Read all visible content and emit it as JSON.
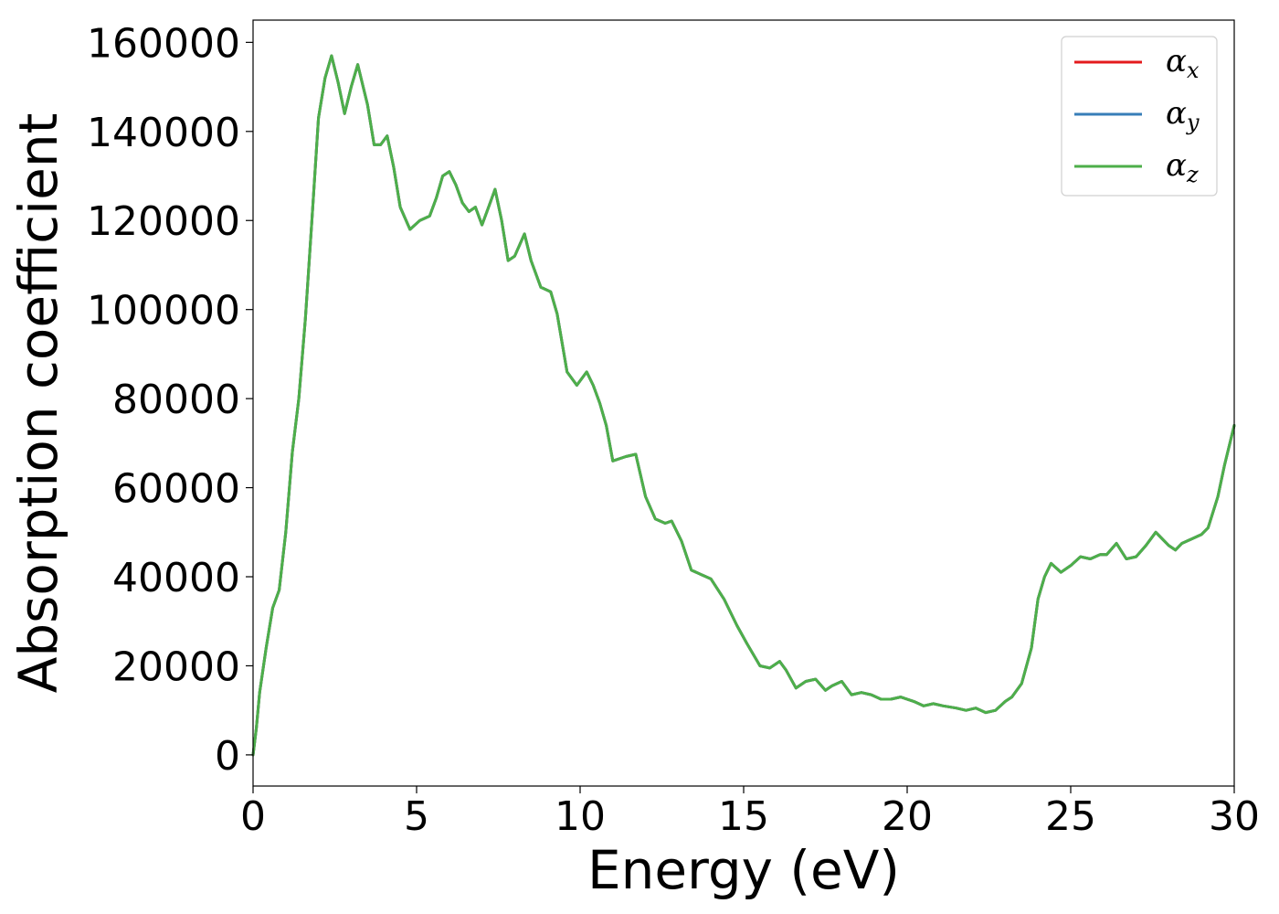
{
  "chart_data": {
    "type": "line",
    "title": "",
    "xlabel": "Energy (eV)",
    "ylabel": "Absorption coefficient",
    "xlim": [
      0,
      30
    ],
    "ylim": [
      -7000,
      165000
    ],
    "xticks": [
      "0",
      "5",
      "10",
      "15",
      "20",
      "25",
      "30"
    ],
    "yticks": [
      "0",
      "20000",
      "40000",
      "60000",
      "80000",
      "100000",
      "120000",
      "140000",
      "160000"
    ],
    "grid": false,
    "legend_position": "top-right",
    "legend": [
      {
        "symbol": "α",
        "sub": "x",
        "color": "#e41a1c"
      },
      {
        "symbol": "α",
        "sub": "y",
        "color": "#377eb8"
      },
      {
        "symbol": "α",
        "sub": "z",
        "color": "#4daf4a"
      }
    ],
    "x": [
      0,
      0.1,
      0.2,
      0.4,
      0.6,
      0.8,
      1.0,
      1.2,
      1.4,
      1.6,
      1.8,
      2.0,
      2.2,
      2.4,
      2.6,
      2.8,
      3.0,
      3.2,
      3.5,
      3.7,
      3.9,
      4.1,
      4.3,
      4.5,
      4.8,
      5.1,
      5.4,
      5.6,
      5.8,
      6.0,
      6.2,
      6.4,
      6.6,
      6.8,
      7.0,
      7.2,
      7.4,
      7.6,
      7.8,
      8.0,
      8.3,
      8.5,
      8.8,
      9.1,
      9.3,
      9.6,
      9.9,
      10.2,
      10.4,
      10.6,
      10.8,
      11.0,
      11.4,
      11.7,
      12.0,
      12.3,
      12.6,
      12.8,
      13.1,
      13.4,
      13.7,
      14.0,
      14.4,
      14.8,
      15.1,
      15.5,
      15.8,
      16.1,
      16.3,
      16.6,
      16.9,
      17.2,
      17.5,
      17.7,
      18.0,
      18.3,
      18.6,
      18.9,
      19.2,
      19.5,
      19.8,
      20.2,
      20.5,
      20.8,
      21.1,
      21.5,
      21.8,
      22.1,
      22.4,
      22.7,
      23.0,
      23.2,
      23.5,
      23.8,
      24.0,
      24.2,
      24.4,
      24.7,
      25.0,
      25.3,
      25.6,
      25.9,
      26.1,
      26.4,
      26.7,
      27.0,
      27.3,
      27.6,
      28.0,
      28.2,
      28.4,
      28.7,
      29.0,
      29.2,
      29.5,
      29.7,
      30.0
    ],
    "series": [
      {
        "color": "#e41a1c",
        "values": [
          0,
          6000,
          14000,
          24000,
          33000,
          37000,
          50000,
          68000,
          80000,
          98000,
          120000,
          143000,
          152000,
          157000,
          151000,
          144000,
          150000,
          155000,
          146000,
          137000,
          137000,
          139000,
          132000,
          123000,
          118000,
          120000,
          121000,
          125000,
          130000,
          131000,
          128000,
          124000,
          122000,
          123000,
          119000,
          123000,
          127000,
          120000,
          111000,
          112000,
          117000,
          111000,
          105000,
          104000,
          99000,
          86000,
          83000,
          86000,
          83000,
          79000,
          74000,
          66000,
          67000,
          67500,
          58000,
          53000,
          52000,
          52500,
          48000,
          41500,
          40500,
          39500,
          35000,
          29000,
          25000,
          20000,
          19500,
          21000,
          19000,
          15000,
          16500,
          17000,
          14500,
          15500,
          16500,
          13500,
          14000,
          13500,
          12500,
          12500,
          13000,
          12000,
          11000,
          11500,
          11000,
          10500,
          10000,
          10500,
          9500,
          10000,
          12000,
          13000,
          16000,
          24000,
          35000,
          40000,
          43000,
          41000,
          42500,
          44500,
          44000,
          45000,
          45000,
          47500,
          44000,
          44500,
          47000,
          50000,
          47000,
          46000,
          47500,
          48500,
          49500,
          51000,
          58000,
          65000,
          74000
        ]
      },
      {
        "color": "#377eb8",
        "values": [
          0,
          6000,
          14000,
          24000,
          33000,
          37000,
          50000,
          68000,
          80000,
          98000,
          120000,
          143000,
          152000,
          157000,
          151000,
          144000,
          150000,
          155000,
          146000,
          137000,
          137000,
          139000,
          132000,
          123000,
          118000,
          120000,
          121000,
          125000,
          130000,
          131000,
          128000,
          124000,
          122000,
          123000,
          119000,
          123000,
          127000,
          120000,
          111000,
          112000,
          117000,
          111000,
          105000,
          104000,
          99000,
          86000,
          83000,
          86000,
          83000,
          79000,
          74000,
          66000,
          67000,
          67500,
          58000,
          53000,
          52000,
          52500,
          48000,
          41500,
          40500,
          39500,
          35000,
          29000,
          25000,
          20000,
          19500,
          21000,
          19000,
          15000,
          16500,
          17000,
          14500,
          15500,
          16500,
          13500,
          14000,
          13500,
          12500,
          12500,
          13000,
          12000,
          11000,
          11500,
          11000,
          10500,
          10000,
          10500,
          9500,
          10000,
          12000,
          13000,
          16000,
          24000,
          35000,
          40000,
          43000,
          41000,
          42500,
          44500,
          44000,
          45000,
          45000,
          47500,
          44000,
          44500,
          47000,
          50000,
          47000,
          46000,
          47500,
          48500,
          49500,
          51000,
          58000,
          65000,
          74000
        ]
      },
      {
        "color": "#4daf4a",
        "values": [
          0,
          6000,
          14000,
          24000,
          33000,
          37000,
          50000,
          68000,
          80000,
          98000,
          120000,
          143000,
          152000,
          157000,
          151000,
          144000,
          150000,
          155000,
          146000,
          137000,
          137000,
          139000,
          132000,
          123000,
          118000,
          120000,
          121000,
          125000,
          130000,
          131000,
          128000,
          124000,
          122000,
          123000,
          119000,
          123000,
          127000,
          120000,
          111000,
          112000,
          117000,
          111000,
          105000,
          104000,
          99000,
          86000,
          83000,
          86000,
          83000,
          79000,
          74000,
          66000,
          67000,
          67500,
          58000,
          53000,
          52000,
          52500,
          48000,
          41500,
          40500,
          39500,
          35000,
          29000,
          25000,
          20000,
          19500,
          21000,
          19000,
          15000,
          16500,
          17000,
          14500,
          15500,
          16500,
          13500,
          14000,
          13500,
          12500,
          12500,
          13000,
          12000,
          11000,
          11500,
          11000,
          10500,
          10000,
          10500,
          9500,
          10000,
          12000,
          13000,
          16000,
          24000,
          35000,
          40000,
          43000,
          41000,
          42500,
          44500,
          44000,
          45000,
          45000,
          47500,
          44000,
          44500,
          47000,
          50000,
          47000,
          46000,
          47500,
          48500,
          49500,
          51000,
          58000,
          65000,
          74000
        ]
      }
    ]
  }
}
